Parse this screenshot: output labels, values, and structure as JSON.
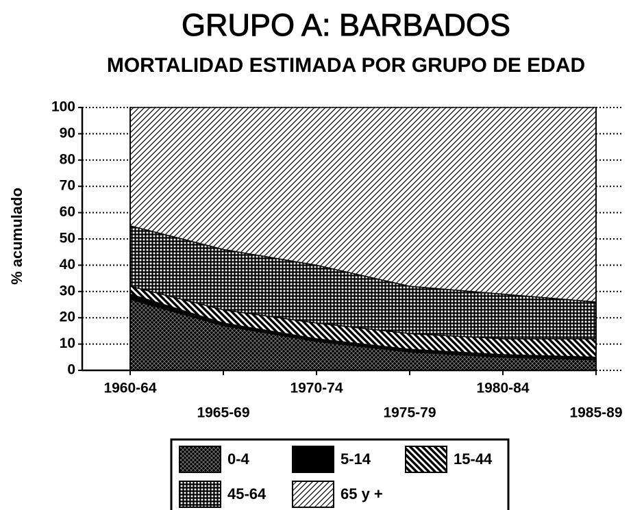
{
  "chart_data": {
    "type": "stacked_area",
    "title": "GRUPO A: BARBADOS",
    "subtitle": "MORTALIDAD ESTIMADA POR GRUPO DE EDAD",
    "y_label": "% acumulado",
    "categories": [
      "1960-64",
      "1965-69",
      "1970-74",
      "1975-79",
      "1980-84",
      "1985-89"
    ],
    "series": [
      {
        "name": "0-4",
        "color": "#000000",
        "values": [
          27,
          17,
          11,
          7,
          5,
          4
        ]
      },
      {
        "name": "5-14",
        "color": "#000000",
        "values": [
          2,
          1,
          1,
          1,
          1,
          1
        ]
      },
      {
        "name": "15-44",
        "color": "#000000",
        "values": [
          3,
          5,
          6,
          6,
          6,
          7
        ]
      },
      {
        "name": "45-64",
        "color": "#000000",
        "values": [
          23,
          23,
          22,
          18,
          17,
          14
        ]
      },
      {
        "name": "65 y +",
        "color": "#000000",
        "values": [
          45,
          54,
          60,
          68,
          71,
          74
        ]
      }
    ],
    "ylim": [
      0,
      100
    ],
    "yticks": [
      0,
      10,
      20,
      30,
      40,
      50,
      60,
      70,
      80,
      90,
      100
    ],
    "grid": true
  }
}
